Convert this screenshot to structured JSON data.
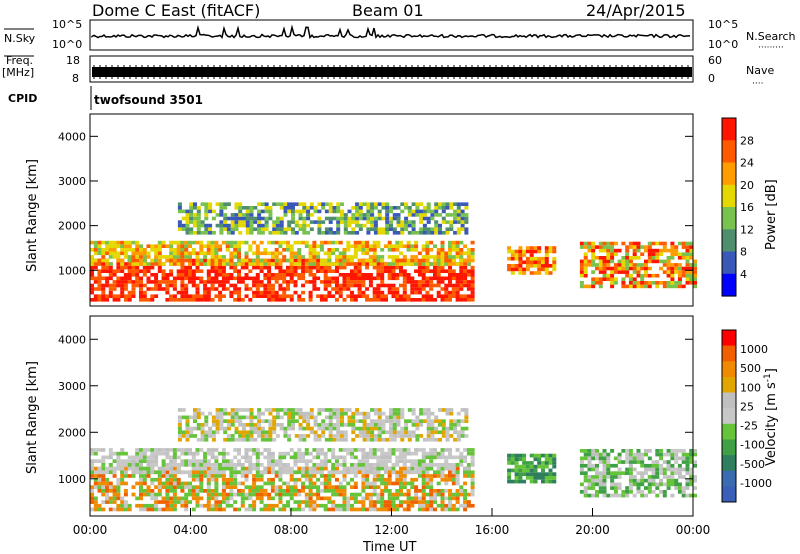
{
  "header": {
    "station": "Dome C East (fitACF)",
    "beam": "Beam 01",
    "date": "24/Apr/2015"
  },
  "panels": {
    "nsky_label": "N.Sky",
    "nsky_ticks": [
      "10^5",
      "10^0"
    ],
    "nsearch_label": "N.Search",
    "nsearch_ticks": [
      "10^5",
      "10^0"
    ],
    "nsearch_legend": "·········",
    "freq_label": "Freq.",
    "freq_unit": "[MHz]",
    "freq_ticks": [
      "18",
      "8"
    ],
    "nave_label": "Nave",
    "nave_ticks": [
      "60",
      "0"
    ],
    "nave_legend": "····",
    "cpid_label": "CPID",
    "cpid_value": "twofsound 3501"
  },
  "colors": {
    "power_scale": [
      "#0000ff",
      "#3a58b8",
      "#4f8f6e",
      "#79c24d",
      "#e4d800",
      "#ff9d00",
      "#ff5a00",
      "#ff1500"
    ],
    "velocity_scale": [
      "#3a5fb8",
      "#3a6ab0",
      "#2f7f5e",
      "#3fa045",
      "#66c43a",
      "#c8c8c8",
      "#c0c0c0",
      "#e1a700",
      "#f08a00",
      "#f06000",
      "#ff0000"
    ]
  },
  "chart_data": [
    {
      "type": "heatmap",
      "name": "power",
      "ylabel": "Slant Range [km]",
      "yticks": [
        "1000",
        "2000",
        "3000",
        "4000"
      ],
      "ylim": [
        200,
        4500
      ],
      "colorbar_label": "Power [dB]",
      "colorbar_ticks": [
        "4",
        "8",
        "12",
        "16",
        "20",
        "24",
        "28"
      ],
      "colorbar_range": [
        0,
        32
      ],
      "xlim": [
        0,
        24
      ]
    },
    {
      "type": "heatmap",
      "name": "velocity",
      "ylabel": "Slant Range [km]",
      "yticks": [
        "1000",
        "2000",
        "3000",
        "4000"
      ],
      "ylim": [
        200,
        4500
      ],
      "colorbar_label": "Velocity [m s^-1]",
      "colorbar_ticks": [
        "1000",
        "500",
        "100",
        "25",
        "-25",
        "-100",
        "-500",
        "-1000"
      ],
      "xticks": [
        "00:00",
        "04:00",
        "08:00",
        "12:00",
        "16:00",
        "20:00",
        "00:00"
      ],
      "xlabel": "Time UT",
      "xlim": [
        0,
        24
      ]
    }
  ]
}
